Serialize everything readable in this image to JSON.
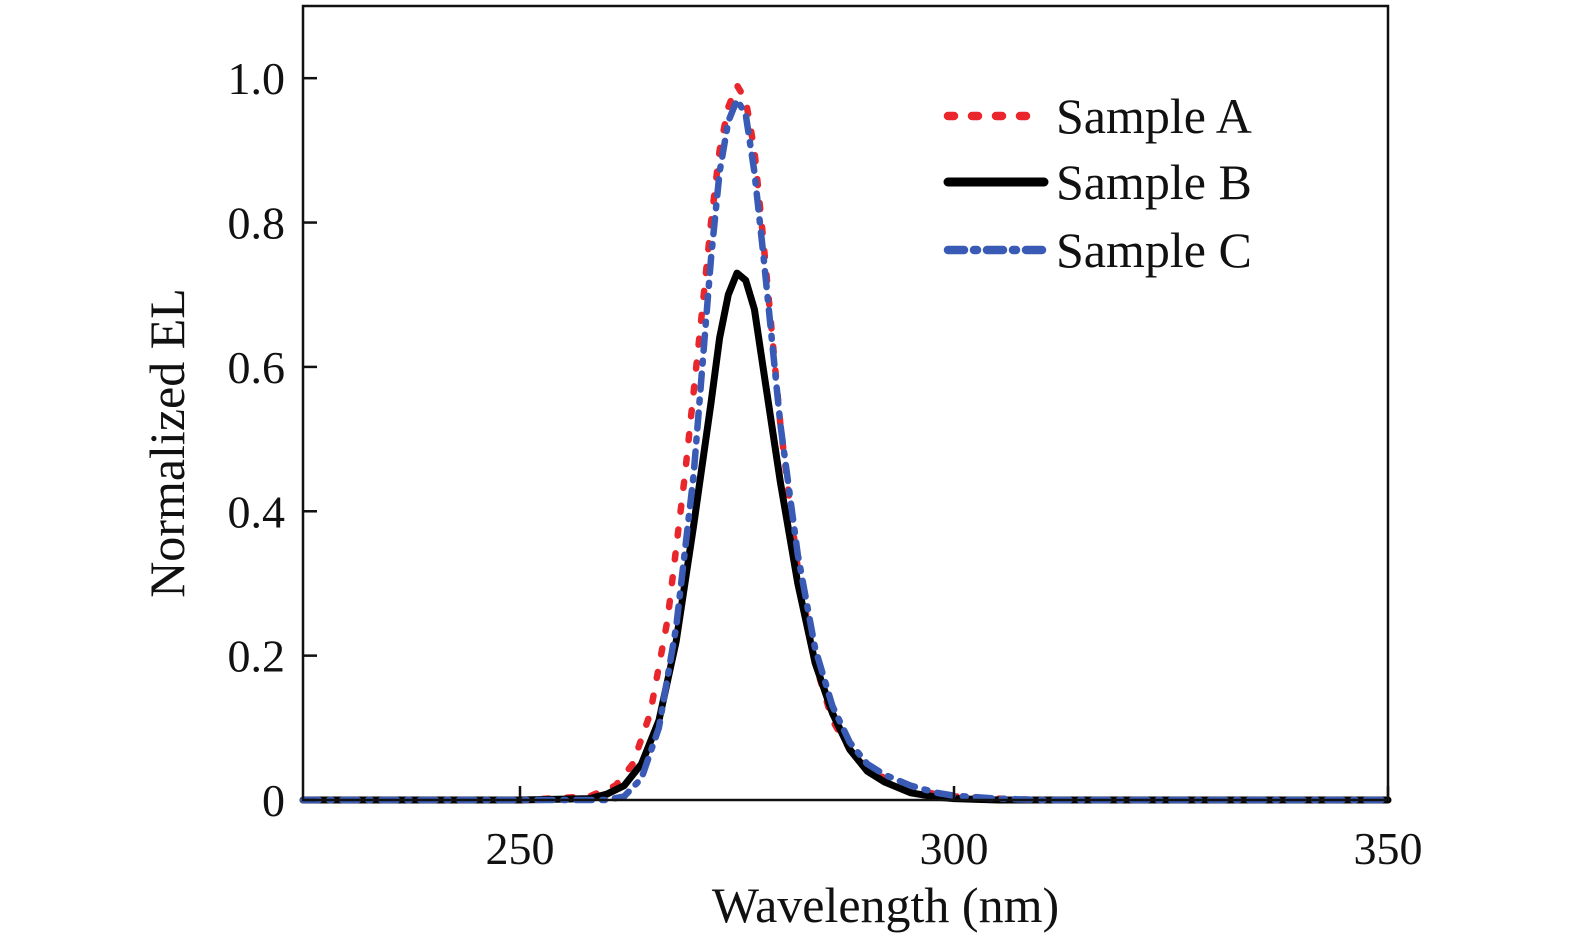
{
  "chart_data": {
    "type": "line",
    "title": "",
    "xlabel": "Wavelength (nm)",
    "ylabel": "Normalized EL",
    "xlim": [
      225,
      350
    ],
    "ylim": [
      0,
      1.1
    ],
    "x_ticks": [
      250,
      300,
      350
    ],
    "x_tick_labels": [
      "250",
      "300",
      "350"
    ],
    "y_ticks": [
      0,
      0.2,
      0.4,
      0.6,
      0.8,
      1.0
    ],
    "y_tick_labels": [
      "0",
      "0.2",
      "0.4",
      "0.6",
      "0.8",
      "1.0"
    ],
    "grid": false,
    "legend_position": "top-right",
    "series": [
      {
        "name": "Sample A",
        "color": "#e8262b",
        "style": "dotted",
        "x": [
          225,
          250,
          258,
          261,
          263,
          265,
          267,
          269,
          271,
          272,
          273,
          274,
          275,
          276,
          277,
          278,
          279,
          280,
          282,
          284,
          286,
          288,
          290,
          292,
          295,
          298,
          300,
          305,
          310,
          320,
          330,
          350
        ],
        "y": [
          0,
          0,
          0.005,
          0.02,
          0.05,
          0.12,
          0.25,
          0.45,
          0.68,
          0.8,
          0.9,
          0.96,
          0.99,
          0.97,
          0.9,
          0.78,
          0.65,
          0.52,
          0.32,
          0.19,
          0.11,
          0.07,
          0.045,
          0.03,
          0.015,
          0.008,
          0.005,
          0.002,
          0,
          0,
          0,
          0
        ]
      },
      {
        "name": "Sample B",
        "color": "#000000",
        "style": "solid",
        "x": [
          225,
          250,
          258,
          260,
          262,
          264,
          266,
          268,
          270,
          272,
          273,
          274,
          275,
          276,
          277,
          278,
          279,
          280,
          282,
          284,
          286,
          288,
          290,
          292,
          295,
          298,
          300,
          305,
          310,
          320,
          330,
          350
        ],
        "y": [
          0,
          0,
          0.002,
          0.008,
          0.02,
          0.05,
          0.11,
          0.22,
          0.38,
          0.55,
          0.64,
          0.7,
          0.73,
          0.72,
          0.68,
          0.6,
          0.52,
          0.44,
          0.3,
          0.19,
          0.12,
          0.07,
          0.04,
          0.025,
          0.01,
          0.004,
          0.002,
          0,
          0,
          0,
          0,
          0
        ]
      },
      {
        "name": "Sample C",
        "color": "#3a5bb5",
        "style": "dash-dot",
        "x": [
          225,
          250,
          260,
          262,
          264,
          266,
          268,
          270,
          271,
          272,
          273,
          274,
          275,
          276,
          277,
          278,
          279,
          280,
          282,
          284,
          286,
          288,
          290,
          292,
          295,
          298,
          300,
          305,
          310,
          320,
          330,
          350
        ],
        "y": [
          0,
          0,
          0,
          0.005,
          0.03,
          0.1,
          0.24,
          0.45,
          0.6,
          0.75,
          0.87,
          0.94,
          0.97,
          0.95,
          0.87,
          0.76,
          0.64,
          0.52,
          0.34,
          0.21,
          0.13,
          0.08,
          0.05,
          0.035,
          0.02,
          0.01,
          0.006,
          0.002,
          0,
          0,
          0,
          0
        ]
      }
    ]
  }
}
